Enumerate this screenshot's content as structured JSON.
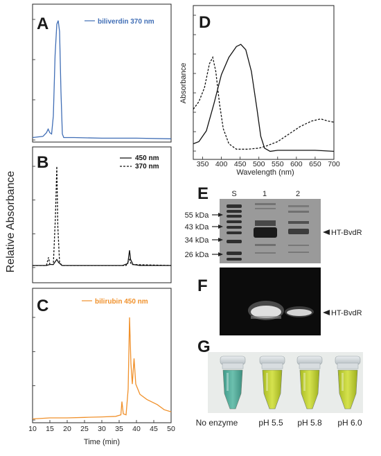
{
  "figure": {
    "shared_ylabel": "Relative Absorbance",
    "shared_xlabel": "Time (min)"
  },
  "colors": {
    "biliverdin": "#3f6db5",
    "bilirubin": "#f0902a",
    "black": "#111111",
    "gel_gray": "#9a9a9a",
    "tube_green": "#5fb0a0",
    "tube_yellow": "#c7d63a"
  },
  "panels": {
    "A": {
      "letter": "A",
      "legend": "biliverdin 370 nm"
    },
    "B": {
      "letter": "B",
      "legend_solid": "450 nm",
      "legend_dashed": "370 nm"
    },
    "C": {
      "letter": "C",
      "legend": "bilirubin 450 nm"
    },
    "D": {
      "letter": "D"
    },
    "E": {
      "letter": "E",
      "lane_labels": [
        "S",
        "1",
        "2"
      ],
      "ladder": [
        "55 kDa",
        "43 kDa",
        "34 kDa",
        "26 kDa"
      ],
      "band_label": "HT-BvdR"
    },
    "F": {
      "letter": "F",
      "band_label": "HT-BvdR"
    },
    "G": {
      "letter": "G",
      "tubes": [
        "No enzyme",
        "pH 5.5",
        "pH 5.8",
        "pH 6.0"
      ]
    }
  },
  "chart_data": [
    {
      "panel": "A",
      "type": "line",
      "title": "",
      "xlabel": "Time (min)",
      "ylabel": "Relative Absorbance",
      "xlim": [
        10,
        50
      ],
      "x_ticks": [
        10,
        15,
        20,
        25,
        30,
        35,
        40,
        45,
        50
      ],
      "series": [
        {
          "name": "biliverdin 370 nm",
          "points": [
            [
              10,
              0.02
            ],
            [
              13,
              0.03
            ],
            [
              14,
              0.06
            ],
            [
              14.5,
              0.09
            ],
            [
              15,
              0.06
            ],
            [
              15.5,
              0.05
            ],
            [
              16,
              0.2
            ],
            [
              16.5,
              0.7
            ],
            [
              17,
              0.96
            ],
            [
              17.4,
              0.99
            ],
            [
              17.8,
              0.9
            ],
            [
              18.2,
              0.4
            ],
            [
              18.6,
              0.05
            ],
            [
              19,
              0.02
            ],
            [
              22,
              0.02
            ],
            [
              30,
              0.015
            ],
            [
              40,
              0.015
            ],
            [
              50,
              0.01
            ]
          ]
        }
      ]
    },
    {
      "panel": "B",
      "type": "line",
      "xlabel": "Time (min)",
      "xlim": [
        10,
        50
      ],
      "series": [
        {
          "name": "450 nm",
          "points": [
            [
              10,
              0.02
            ],
            [
              14,
              0.02
            ],
            [
              15,
              0.03
            ],
            [
              16,
              0.03
            ],
            [
              16.6,
              0.06
            ],
            [
              17,
              0.08
            ],
            [
              17.5,
              0.05
            ],
            [
              18.5,
              0.02
            ],
            [
              30,
              0.02
            ],
            [
              36,
              0.02
            ],
            [
              37.5,
              0.04
            ],
            [
              38,
              0.17
            ],
            [
              38.3,
              0.08
            ],
            [
              39,
              0.03
            ],
            [
              41,
              0.02
            ],
            [
              50,
              0.02
            ]
          ]
        },
        {
          "name": "370 nm",
          "points": [
            [
              10,
              0.02
            ],
            [
              14,
              0.02
            ],
            [
              14.6,
              0.1
            ],
            [
              15,
              0.03
            ],
            [
              16,
              0.03
            ],
            [
              16.6,
              0.5
            ],
            [
              17,
              1.0
            ],
            [
              17.3,
              0.4
            ],
            [
              17.8,
              0.05
            ],
            [
              18.5,
              0.02
            ],
            [
              30,
              0.02
            ],
            [
              37,
              0.02
            ],
            [
              38,
              0.08
            ],
            [
              38.5,
              0.03
            ],
            [
              50,
              0.02
            ]
          ]
        }
      ]
    },
    {
      "panel": "C",
      "type": "line",
      "xlabel": "Time (min)",
      "xlim": [
        10,
        50
      ],
      "x_ticks": [
        10,
        15,
        20,
        25,
        30,
        35,
        40,
        45,
        50
      ],
      "series": [
        {
          "name": "bilirubin 450 nm",
          "points": [
            [
              10,
              0.01
            ],
            [
              15,
              0.02
            ],
            [
              20,
              0.02
            ],
            [
              25,
              0.025
            ],
            [
              30,
              0.03
            ],
            [
              34,
              0.035
            ],
            [
              35.5,
              0.05
            ],
            [
              35.8,
              0.18
            ],
            [
              36.2,
              0.06
            ],
            [
              37,
              0.05
            ],
            [
              37.6,
              0.3
            ],
            [
              38,
              1.0
            ],
            [
              38.4,
              0.55
            ],
            [
              38.8,
              0.35
            ],
            [
              39.3,
              0.6
            ],
            [
              39.8,
              0.35
            ],
            [
              41,
              0.25
            ],
            [
              43,
              0.2
            ],
            [
              46,
              0.15
            ],
            [
              48,
              0.1
            ],
            [
              50,
              0.08
            ]
          ]
        }
      ]
    },
    {
      "panel": "D",
      "type": "line",
      "xlabel": "Wavelength (nm)",
      "ylabel": "Absorbance",
      "xlim": [
        325,
        700
      ],
      "x_ticks": [
        350,
        400,
        450,
        500,
        550,
        600,
        650,
        700
      ],
      "series": [
        {
          "name": "",
          "style": "solid",
          "points": [
            [
              325,
              0.08
            ],
            [
              340,
              0.1
            ],
            [
              360,
              0.2
            ],
            [
              380,
              0.45
            ],
            [
              400,
              0.72
            ],
            [
              420,
              0.88
            ],
            [
              440,
              0.98
            ],
            [
              452,
              1.0
            ],
            [
              465,
              0.95
            ],
            [
              480,
              0.75
            ],
            [
              495,
              0.4
            ],
            [
              505,
              0.15
            ],
            [
              515,
              0.04
            ],
            [
              530,
              0.01
            ],
            [
              550,
              0.02
            ],
            [
              600,
              0.02
            ],
            [
              650,
              0.02
            ],
            [
              700,
              0.01
            ]
          ]
        },
        {
          "name": "",
          "style": "dashed",
          "points": [
            [
              325,
              0.4
            ],
            [
              340,
              0.47
            ],
            [
              355,
              0.6
            ],
            [
              368,
              0.82
            ],
            [
              377,
              0.88
            ],
            [
              385,
              0.75
            ],
            [
              395,
              0.45
            ],
            [
              405,
              0.22
            ],
            [
              420,
              0.08
            ],
            [
              440,
              0.03
            ],
            [
              470,
              0.03
            ],
            [
              500,
              0.04
            ],
            [
              520,
              0.06
            ],
            [
              550,
              0.1
            ],
            [
              580,
              0.17
            ],
            [
              610,
              0.24
            ],
            [
              640,
              0.29
            ],
            [
              665,
              0.31
            ],
            [
              685,
              0.29
            ],
            [
              700,
              0.28
            ]
          ]
        }
      ]
    }
  ]
}
